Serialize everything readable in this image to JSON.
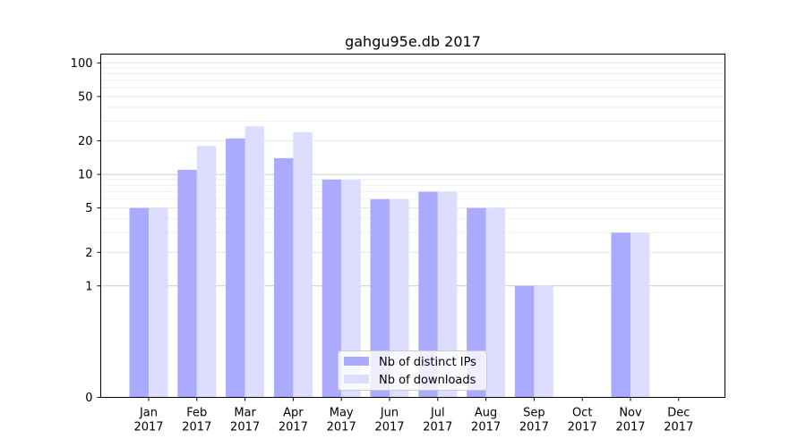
{
  "chart_data": {
    "type": "bar",
    "title": "gahgu95e.db 2017",
    "xlabel": "",
    "ylabel": "",
    "y_scale": "symlog",
    "ylim": [
      0,
      120
    ],
    "y_ticks": [
      0,
      1,
      2,
      5,
      10,
      20,
      50,
      100
    ],
    "grid": "horizontal",
    "legend_position": "bottom-center",
    "categories": [
      "Jan\n2017",
      "Feb\n2017",
      "Mar\n2017",
      "Apr\n2017",
      "May\n2017",
      "Jun\n2017",
      "Jul\n2017",
      "Aug\n2017",
      "Sep\n2017",
      "Oct\n2017",
      "Nov\n2017",
      "Dec\n2017"
    ],
    "series": [
      {
        "name": "Nb of distinct IPs",
        "color": "#aaaaff",
        "values": [
          5,
          11,
          21,
          14,
          9,
          6,
          7,
          5,
          1,
          0,
          3,
          0
        ]
      },
      {
        "name": "Nb of downloads",
        "color": "#ddddff",
        "values": [
          5,
          18,
          27,
          24,
          9,
          6,
          7,
          5,
          1,
          0,
          3,
          0
        ]
      }
    ]
  }
}
